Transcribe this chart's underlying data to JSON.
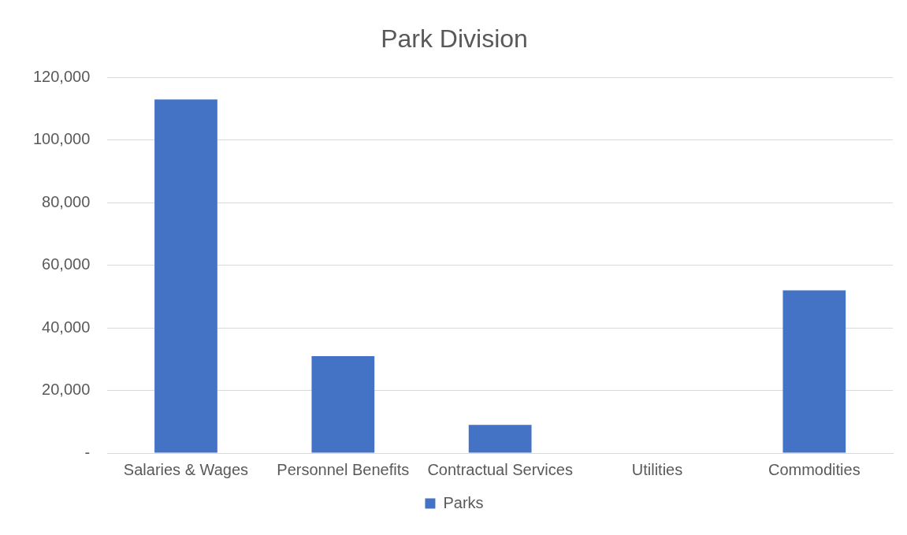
{
  "chart_data": {
    "type": "bar",
    "title": "Park Division",
    "categories": [
      "Salaries & Wages",
      "Personnel Benefits",
      "Contractual Services",
      "Utilities",
      "Commodities"
    ],
    "series": [
      {
        "name": "Parks",
        "color": "#4472c4",
        "values": [
          113000,
          31000,
          9000,
          0,
          52000
        ]
      }
    ],
    "ylim": [
      0,
      120000
    ],
    "yticks": [
      {
        "value": 0,
        "label": "-"
      },
      {
        "value": 20000,
        "label": "20,000"
      },
      {
        "value": 40000,
        "label": "40,000"
      },
      {
        "value": 60000,
        "label": "60,000"
      },
      {
        "value": 80000,
        "label": "80,000"
      },
      {
        "value": 100000,
        "label": "100,000"
      },
      {
        "value": 120000,
        "label": "120,000"
      }
    ],
    "grid": "y",
    "legend": "bottom"
  }
}
